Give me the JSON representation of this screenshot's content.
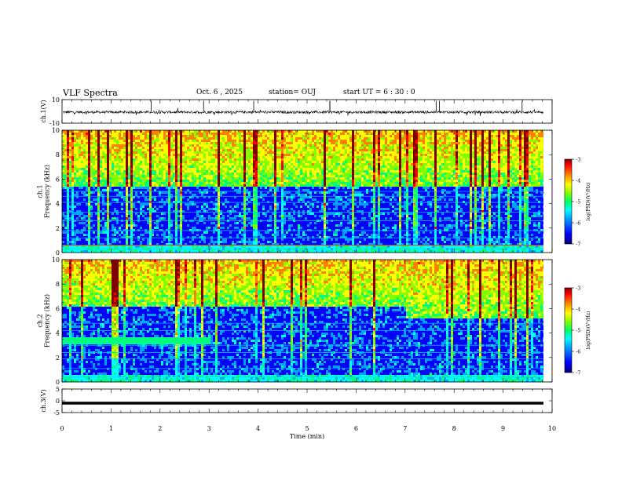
{
  "header": {
    "title": "VLF Spectra",
    "date": "Oct. 6 , 2025",
    "station": "station= OUJ",
    "start": "start UT = 6 : 30 : 0"
  },
  "chart_data": [
    {
      "type": "line",
      "ylabel": "ch.1(V)",
      "ylim": [
        -10,
        10
      ],
      "yticks": [
        "10",
        "-10"
      ],
      "description_level": 0
    },
    {
      "type": "heatmap",
      "ylabel": "ch.1\nFrequency (kHz)",
      "ylim": [
        0,
        10
      ],
      "yticks": [
        "0",
        "2",
        "4",
        "6",
        "8",
        "10"
      ],
      "colorbar": {
        "label": "log(PSD)(V²/Hz)",
        "range": [
          -7,
          -3
        ],
        "ticks": [
          "-3",
          "-4",
          "-5",
          "-6",
          "-7"
        ]
      }
    },
    {
      "type": "heatmap",
      "ylabel": "ch.2\nFrequency (kHz)",
      "ylim": [
        0,
        10
      ],
      "yticks": [
        "0",
        "2",
        "4",
        "6",
        "8",
        "10"
      ],
      "colorbar": {
        "label": "log(PSD)(V²/Hz)",
        "range": [
          -7,
          -3
        ],
        "ticks": [
          "-3",
          "-4",
          "-5",
          "-6",
          "-7"
        ]
      }
    },
    {
      "type": "line",
      "ylabel": "ch.3(V)",
      "ylim": [
        -5,
        5
      ],
      "yticks": [
        "5",
        "0",
        "-5"
      ],
      "level": -1
    }
  ],
  "xaxis": {
    "label": "Time (min)",
    "xlim": [
      0,
      10
    ],
    "ticks": [
      "0",
      "1",
      "2",
      "3",
      "4",
      "5",
      "6",
      "7",
      "8",
      "9",
      "10"
    ]
  },
  "colors": {
    "scale": [
      "#00007f",
      "#0000ff",
      "#00a0ff",
      "#00ffff",
      "#00ff80",
      "#80ff00",
      "#ffff00",
      "#ff8000",
      "#ff0000",
      "#800000"
    ]
  }
}
